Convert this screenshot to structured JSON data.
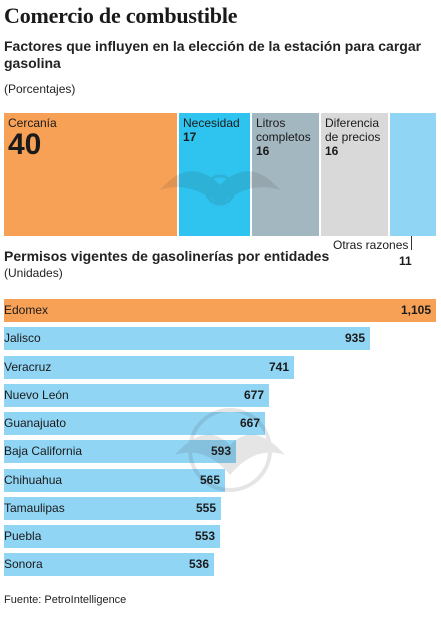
{
  "title": "Comercio de combustible",
  "chart_data": [
    {
      "type": "treemap",
      "subtitle": "Factores que influyen en la elección de la estación para cargar gasolina",
      "unit_label": "(Porcentajes)",
      "items": [
        {
          "label_lines": [
            "Cercanía"
          ],
          "value": 40,
          "color": "#f7a157"
        },
        {
          "label_lines": [
            "Necesidad"
          ],
          "value": 17,
          "color": "#2ec4ef"
        },
        {
          "label_lines": [
            "Litros",
            "completos"
          ],
          "value": 16,
          "color": "#a3b7c1"
        },
        {
          "label_lines": [
            "Diferencia",
            "de precios"
          ],
          "value": 16,
          "color": "#d9d9d9"
        },
        {
          "label_lines": [
            "Otras razones"
          ],
          "value": 11,
          "color": "#91d5f5"
        }
      ]
    },
    {
      "type": "bar",
      "orientation": "horizontal",
      "subtitle": "Permisos vigentes de gasolinerías por entidades",
      "unit_label": "(Unidades)",
      "categories": [
        "Edomex",
        "Jalisco",
        "Veracruz",
        "Nuevo León",
        "Guanajuato",
        "Baja California",
        "Chihuahua",
        "Tamaulipas",
        "Puebla",
        "Sonora"
      ],
      "values": [
        1105,
        935,
        741,
        677,
        667,
        593,
        565,
        555,
        553,
        536
      ],
      "value_labels": [
        "1,105",
        "935",
        "741",
        "677",
        "667",
        "593",
        "565",
        "555",
        "553",
        "536"
      ],
      "colors": {
        "highlight": "#f7a157",
        "default": "#91d5f5"
      },
      "xlim": [
        0,
        1105
      ]
    }
  ],
  "source": "Fuente: PetroIntelligence"
}
